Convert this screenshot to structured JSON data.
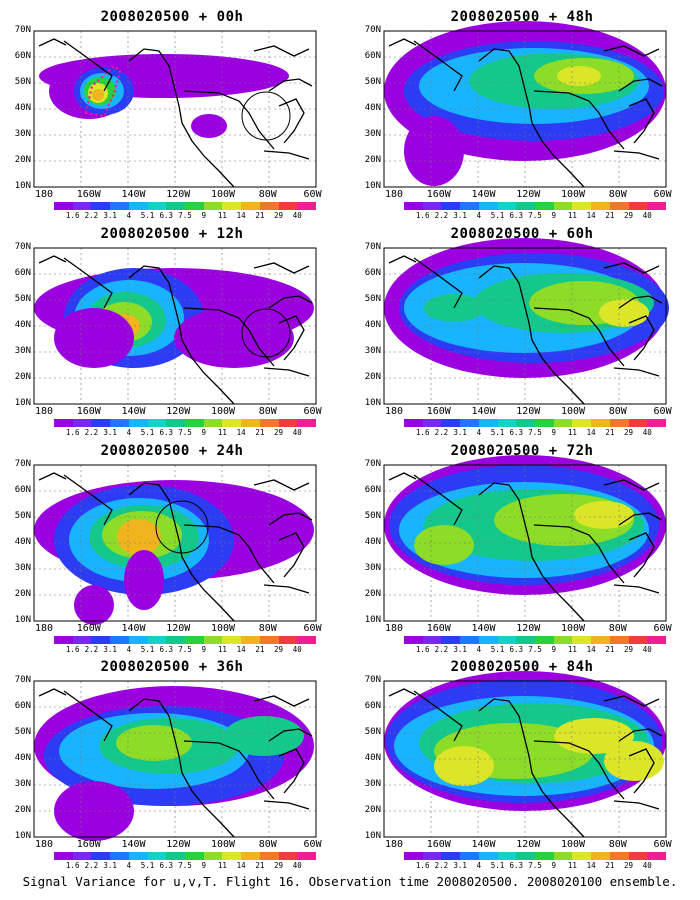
{
  "panels": [
    {
      "id": "p00",
      "title": "2008020500 + 00h"
    },
    {
      "id": "p48",
      "title": "2008020500 + 48h"
    },
    {
      "id": "p12",
      "title": "2008020500 + 12h"
    },
    {
      "id": "p60",
      "title": "2008020500 + 60h"
    },
    {
      "id": "p24",
      "title": "2008020500 + 24h"
    },
    {
      "id": "p72",
      "title": "2008020500 + 72h"
    },
    {
      "id": "p36",
      "title": "2008020500 + 36h"
    },
    {
      "id": "p84",
      "title": "2008020500 + 84h"
    }
  ],
  "lat_labels": [
    "70N",
    "60N",
    "50N",
    "40N",
    "30N",
    "20N",
    "10N"
  ],
  "lon_labels": [
    "180",
    "160W",
    "140W",
    "120W",
    "100W",
    "80W",
    "60W"
  ],
  "colorbar": {
    "labels": [
      "1.6",
      "2.2",
      "3.1",
      "4",
      "5.1",
      "6.3",
      "7.5",
      "9",
      "11",
      "14",
      "21",
      "29",
      "40"
    ],
    "colors": [
      "#9b00e0",
      "#7a28f0",
      "#2c3cf5",
      "#1e78ff",
      "#19b4ff",
      "#14d2c8",
      "#14c88c",
      "#28d23c",
      "#8cdc28",
      "#dce628",
      "#f0b41e",
      "#f07828",
      "#f03c3c",
      "#f01e96"
    ]
  },
  "caption": "Signal Variance for u,v,T. Flight 16. Observation time 2008020500. 2008020100 ensemble."
}
